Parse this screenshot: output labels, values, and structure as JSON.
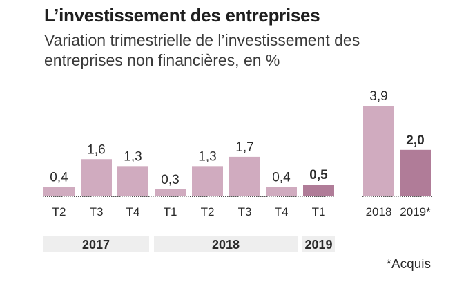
{
  "chart_data": {
    "type": "bar",
    "title": "L’investissement des entreprises",
    "subtitle": "Variation trimestrielle de l’investissement des entreprises non financières, en %",
    "groups": [
      {
        "name": "quarterly",
        "categories": [
          "T2",
          "T3",
          "T4",
          "T1",
          "T2",
          "T3",
          "T4",
          "T1"
        ],
        "values": [
          0.4,
          1.6,
          1.3,
          0.3,
          1.3,
          1.7,
          0.4,
          0.5
        ],
        "value_labels": [
          "0,4",
          "1,6",
          "1,3",
          "0,3",
          "1,3",
          "1,7",
          "0,4",
          "0,5"
        ],
        "years": [
          {
            "label": "2017",
            "span": [
              0,
              2
            ]
          },
          {
            "label": "2018",
            "span": [
              3,
              6
            ]
          },
          {
            "label": "2019",
            "span": [
              7,
              7
            ]
          }
        ]
      },
      {
        "name": "annual",
        "categories": [
          "2018",
          "2019*"
        ],
        "values": [
          3.9,
          2.0
        ],
        "value_labels": [
          "3,9",
          "2,0"
        ]
      }
    ],
    "highlighted": [
      7,
      9
    ],
    "ylim": [
      0,
      3.9
    ],
    "colors": {
      "bar": "#d0abbf",
      "highlight": "#b07c98",
      "axis": "#555555",
      "year_band": "#eeeeee"
    }
  },
  "footnote": "*Acquis"
}
